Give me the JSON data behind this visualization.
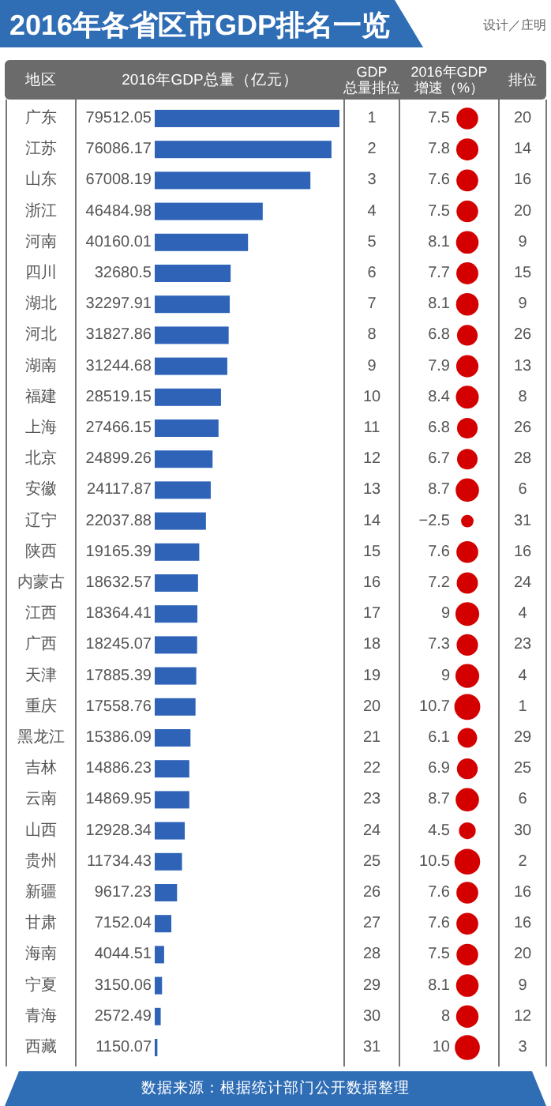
{
  "chart_data": [
    {
      "type": "bar",
      "orientation": "horizontal",
      "title": "2016年各省区市GDP排名一览",
      "xlabel": "2016年GDP总量（亿元）",
      "ylabel": "地区",
      "annotations": [
        "设计／庄明",
        "数据来源：根据统计部门公开数据整理"
      ],
      "data_labels": true,
      "color": "#2e63b8",
      "categories": [
        "广东",
        "江苏",
        "山东",
        "浙江",
        "河南",
        "四川",
        "湖北",
        "河北",
        "湖南",
        "福建",
        "上海",
        "北京",
        "安徽",
        "辽宁",
        "陕西",
        "内蒙古",
        "江西",
        "广西",
        "天津",
        "重庆",
        "黑龙江",
        "吉林",
        "云南",
        "山西",
        "贵州",
        "新疆",
        "甘肃",
        "海南",
        "宁夏",
        "青海",
        "西藏"
      ],
      "values": [
        79512.05,
        76086.17,
        67008.19,
        46484.98,
        40160.01,
        32680.5,
        32297.91,
        31827.86,
        31244.68,
        28519.15,
        27466.15,
        24899.26,
        24117.87,
        22037.88,
        19165.39,
        18632.57,
        18364.41,
        18245.07,
        17885.39,
        17558.76,
        15386.09,
        14886.23,
        14869.95,
        12928.34,
        11734.43,
        9617.23,
        7152.04,
        4044.51,
        3150.06,
        2572.49,
        1150.07
      ]
    },
    {
      "type": "other",
      "title": "GDP\n总量排位",
      "data_labels": true,
      "values": [
        1,
        2,
        3,
        4,
        5,
        6,
        7,
        8,
        9,
        10,
        11,
        12,
        13,
        14,
        15,
        16,
        17,
        18,
        19,
        20,
        21,
        22,
        23,
        24,
        25,
        26,
        27,
        28,
        29,
        30,
        31
      ]
    },
    {
      "type": "other",
      "title": "2016年GDP\n增速（%）",
      "data_labels": true,
      "color": "#d40000",
      "values": [
        7.5,
        7.8,
        7.6,
        7.5,
        8.1,
        7.7,
        8.1,
        6.8,
        7.9,
        8.4,
        6.8,
        6.7,
        8.7,
        -2.5,
        7.6,
        7.2,
        9,
        7.3,
        9,
        10.7,
        6.1,
        6.9,
        8.7,
        4.5,
        10.5,
        7.6,
        7.6,
        7.5,
        8.1,
        8,
        10
      ]
    },
    {
      "type": "other",
      "title": "排位",
      "data_labels": true,
      "values": [
        20,
        14,
        16,
        20,
        9,
        15,
        9,
        26,
        13,
        8,
        26,
        28,
        6,
        31,
        16,
        24,
        4,
        23,
        4,
        1,
        29,
        25,
        6,
        30,
        2,
        16,
        16,
        20,
        9,
        12,
        3
      ]
    }
  ]
}
